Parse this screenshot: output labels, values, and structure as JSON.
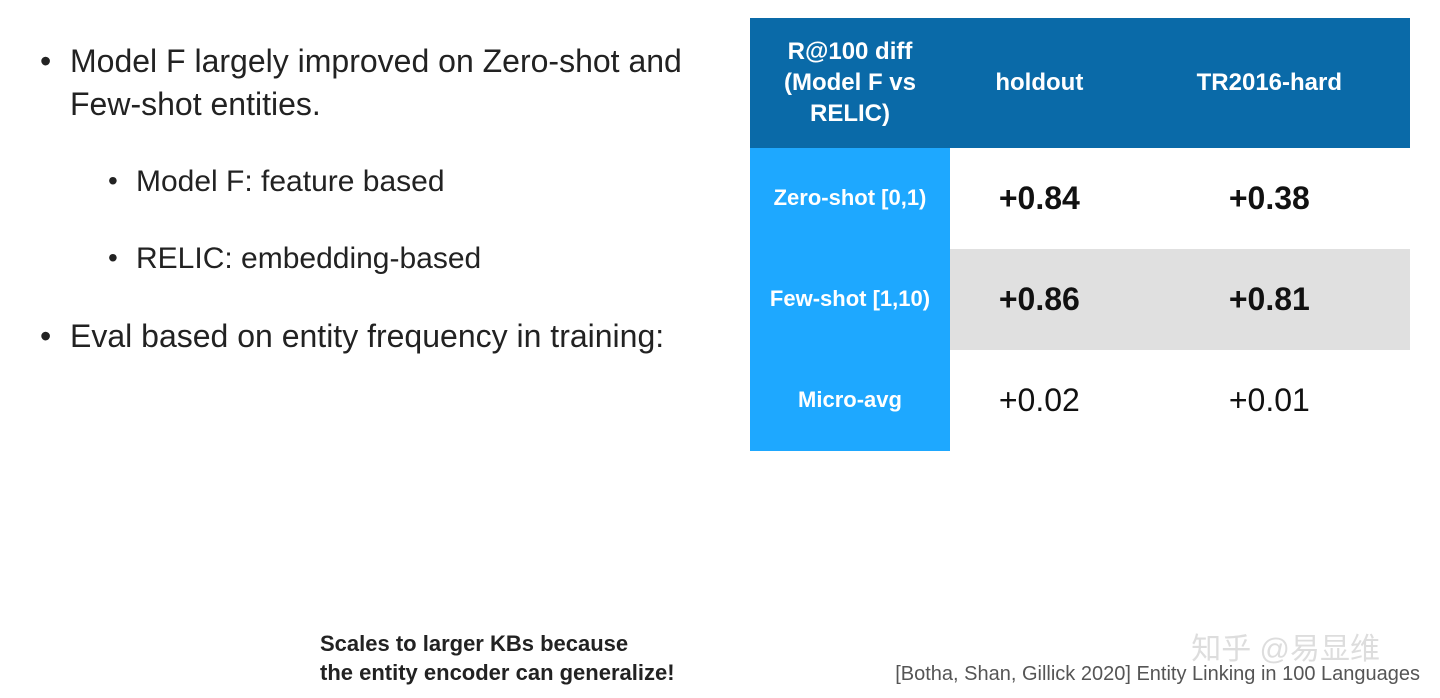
{
  "bullets": {
    "item1": "Model F largely improved on Zero-shot and Few-shot entities.",
    "sub1": "Model F: feature based",
    "sub2": "RELIC: embedding-based",
    "item2": "Eval based on entity frequency in training:"
  },
  "table": {
    "type": "table",
    "header_bg": "#0a6aa8",
    "rowheader_bg": "#1ea8ff",
    "alt_row_bg": "#e0e0e0",
    "text_color_header": "#ffffff",
    "text_color_body": "#111111",
    "columns": {
      "c0": "R@100 diff (Model F vs RELIC)",
      "c1": "holdout",
      "c2": "TR2016-hard"
    },
    "rows": {
      "r0": {
        "label": "Zero-shot [0,1)",
        "holdout": "+0.84",
        "tr": "+0.38",
        "bold": true,
        "alt": false
      },
      "r1": {
        "label": "Few-shot [1,10)",
        "holdout": "+0.86",
        "tr": "+0.81",
        "bold": true,
        "alt": true
      },
      "r2": {
        "label": "Micro-avg",
        "holdout": "+0.02",
        "tr": "+0.01",
        "bold": false,
        "alt": false
      }
    },
    "font": {
      "header_size": 24,
      "rowheader_size": 22,
      "cell_size": 32
    }
  },
  "caption": {
    "line1": "Scales to larger KBs because",
    "line2": "the entity encoder can generalize!"
  },
  "citation": "[Botha, Shan, Gillick 2020] Entity Linking in 100 Languages",
  "watermark": "知乎 @易显维"
}
